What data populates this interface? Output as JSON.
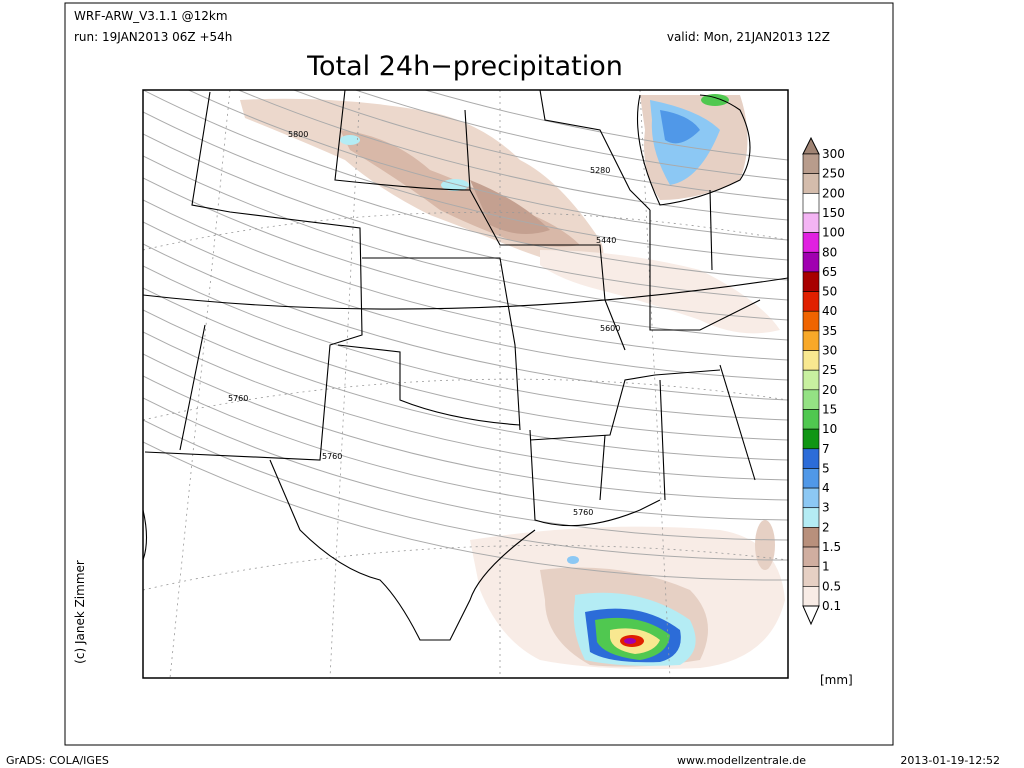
{
  "header": {
    "model": "WRF-ARW_V3.1.1 @12km",
    "run": "run: 19JAN2013 06Z +54h",
    "valid": "valid: Mon, 21JAN2013 12Z",
    "title": "Total 24h−precipitation"
  },
  "copyright": "(c) Janek Zimmer",
  "contour_labels": [
    5800,
    5280,
    5440,
    5600,
    5760,
    5760,
    5760
  ],
  "legend": {
    "unit": "[mm]",
    "levels": [
      300,
      250,
      200,
      150,
      100,
      80,
      65,
      50,
      40,
      35,
      30,
      25,
      20,
      15,
      10,
      7,
      5,
      4,
      3,
      2,
      1.5,
      1,
      0.5,
      0.1
    ],
    "colors": [
      "#a08474",
      "#b89c8c",
      "#d4bcac",
      "#ffffff",
      "#f4b4f4",
      "#e020e0",
      "#a000b0",
      "#a80000",
      "#e02000",
      "#f06400",
      "#f8a828",
      "#f8e890",
      "#c8f0a0",
      "#94e284",
      "#50c850",
      "#109614",
      "#2c6cd8",
      "#5098e8",
      "#8cc8f4",
      "#b4ecf4",
      "#b8907c",
      "#d0aea0",
      "#e6d0c4",
      "#f8ece6",
      "#ffffff"
    ]
  },
  "footer": {
    "left": "GrADS: COLA/IGES",
    "center": "www.modellzentrale.de",
    "right": "2013-01-19-12:52"
  }
}
